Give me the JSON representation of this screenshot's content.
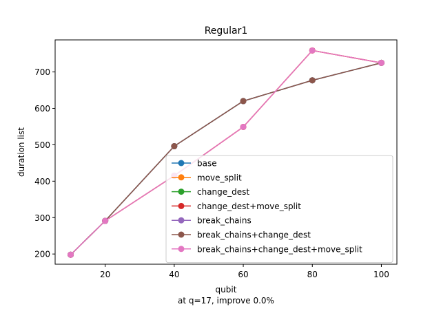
{
  "chart_data": {
    "type": "line",
    "title": "Regular1",
    "xlabel": "qubit",
    "ylabel": "duration list",
    "caption": "at q=17, improve 0.0%",
    "xlim": [
      5.5,
      104.5
    ],
    "ylim": [
      172,
      788
    ],
    "xticks": [
      20,
      40,
      60,
      80,
      100
    ],
    "yticks": [
      200,
      300,
      400,
      500,
      600,
      700
    ],
    "grid": false,
    "legend_position": "lower-right",
    "x": [
      10,
      20,
      40,
      60,
      80,
      100
    ],
    "series": [
      {
        "name": "base",
        "color": "#1f77b4",
        "values": [
          198,
          291,
          496,
          620,
          677,
          725
        ]
      },
      {
        "name": "move_split",
        "color": "#ff7f0e",
        "values": [
          198,
          291,
          415,
          549,
          759,
          725
        ]
      },
      {
        "name": "change_dest",
        "color": "#2ca02c",
        "values": [
          198,
          291,
          496,
          620,
          677,
          725
        ]
      },
      {
        "name": "change_dest+move_split",
        "color": "#d62728",
        "values": [
          198,
          291,
          415,
          549,
          759,
          725
        ]
      },
      {
        "name": "break_chains",
        "color": "#9467bd",
        "values": [
          198,
          291,
          496,
          620,
          677,
          725
        ]
      },
      {
        "name": "break_chains+change_dest",
        "color": "#8c564b",
        "values": [
          198,
          291,
          496,
          620,
          677,
          725
        ]
      },
      {
        "name": "break_chains+change_dest+move_split",
        "color": "#e377c2",
        "values": [
          198,
          291,
          415,
          549,
          759,
          725
        ]
      }
    ]
  }
}
